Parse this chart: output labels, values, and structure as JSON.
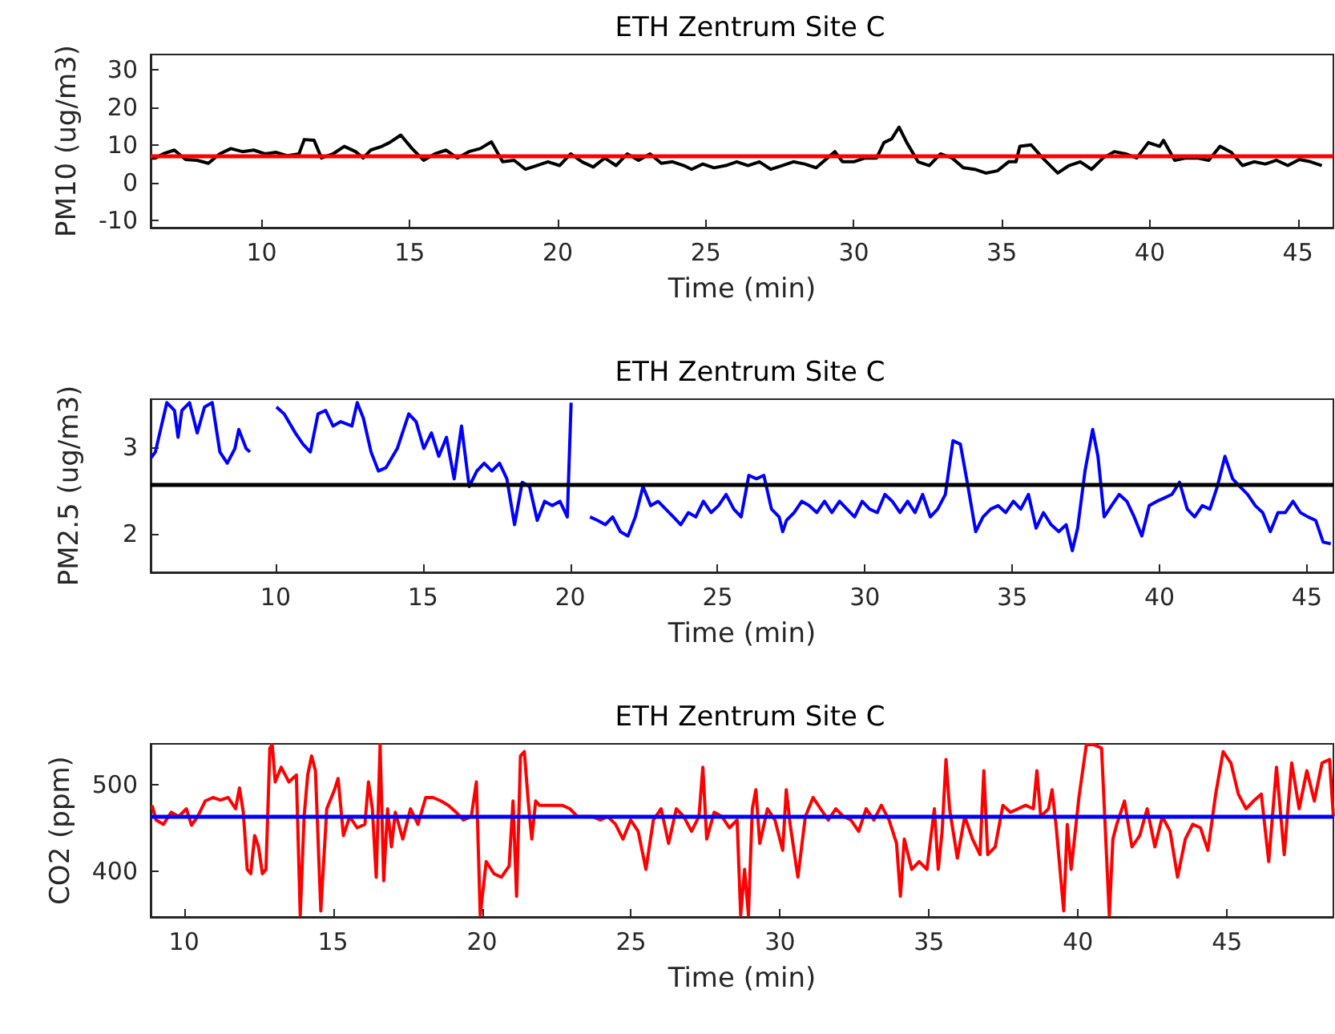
{
  "chart_data": [
    {
      "type": "line",
      "title": "ETH Zentrum Site C",
      "xlabel": "Time (min)",
      "ylabel": "PM10 (ug/m3)",
      "x": [
        6.29,
        6.41,
        6.67,
        7.05,
        7.43,
        7.82,
        8.2,
        8.58,
        8.96,
        9.35,
        9.73,
        10.11,
        10.49,
        10.88,
        11.26,
        11.44,
        11.77,
        12.02,
        12.41,
        12.79,
        13.17,
        13.43,
        13.68,
        14.06,
        14.32,
        14.7,
        15.08,
        15.47,
        15.85,
        16.23,
        16.61,
        17.0,
        17.38,
        17.76,
        18.14,
        18.53,
        18.91,
        19.29,
        19.67,
        20.06,
        20.44,
        20.82,
        21.2,
        21.59,
        21.97,
        22.35,
        22.73,
        23.12,
        23.5,
        23.88,
        24.26,
        24.52,
        24.9,
        25.28,
        25.67,
        26.05,
        26.43,
        26.81,
        27.2,
        27.58,
        27.96,
        28.34,
        28.73,
        29.11,
        29.36,
        29.62,
        30.0,
        30.38,
        30.77,
        31.02,
        31.28,
        31.53,
        31.79,
        32.17,
        32.55,
        32.93,
        33.32,
        33.7,
        34.08,
        34.46,
        34.85,
        35.23,
        35.48,
        35.61,
        35.99,
        36.38,
        36.89,
        37.27,
        37.65,
        38.03,
        38.42,
        38.8,
        39.18,
        39.56,
        39.95,
        40.33,
        40.46,
        40.84,
        41.22,
        41.6,
        41.99,
        42.37,
        42.75,
        43.13,
        43.52,
        43.9,
        44.28,
        44.66,
        45.05,
        45.43,
        45.81
      ],
      "series": [
        {
          "color": "#000000",
          "values": [
            6.5,
            6.5,
            7.6,
            8.6,
            6.1,
            5.9,
            5.1,
            7.6,
            9.0,
            8.2,
            8.6,
            7.6,
            8.0,
            7.1,
            7.6,
            11.4,
            11.2,
            6.5,
            7.6,
            9.6,
            8.2,
            6.5,
            8.6,
            9.6,
            10.6,
            12.6,
            9.0,
            5.9,
            7.6,
            8.6,
            6.5,
            8.2,
            9.0,
            10.8,
            5.5,
            5.9,
            3.5,
            4.5,
            5.5,
            4.5,
            7.6,
            5.5,
            4.1,
            6.5,
            4.5,
            7.6,
            5.9,
            7.6,
            5.1,
            5.5,
            4.5,
            3.5,
            4.9,
            3.9,
            4.5,
            5.5,
            4.5,
            5.5,
            3.5,
            4.5,
            5.5,
            4.9,
            3.9,
            6.5,
            8.2,
            5.5,
            5.5,
            6.5,
            6.5,
            10.6,
            11.6,
            14.7,
            10.6,
            5.5,
            4.5,
            7.6,
            6.5,
            3.9,
            3.5,
            2.5,
            3.1,
            5.5,
            5.5,
            9.6,
            10.0,
            6.5,
            2.5,
            4.5,
            5.5,
            3.5,
            6.5,
            8.2,
            7.6,
            6.5,
            10.6,
            9.6,
            11.2,
            5.9,
            6.5,
            6.5,
            5.9,
            9.6,
            8.0,
            4.5,
            5.5,
            4.9,
            5.9,
            4.5,
            6.1,
            5.5,
            4.5
          ]
        }
      ],
      "xlim": [
        6.25,
        46.2
      ],
      "xticks": [
        10,
        15,
        20,
        25,
        30,
        35,
        40,
        45
      ],
      "ylim": [
        -12,
        34
      ],
      "yticks": [
        -10,
        0,
        10,
        20,
        30
      ],
      "ref_lines": [
        {
          "axis": "y",
          "value": 7,
          "color": "#ff0000"
        }
      ]
    },
    {
      "type": "line",
      "title": "ETH Zentrum Site C",
      "xlabel": "Time (min)",
      "ylabel": "PM2.5 (ug/m3)",
      "x": [
        5.77,
        5.92,
        6.31,
        6.57,
        6.69,
        6.82,
        7.08,
        7.34,
        7.59,
        7.85,
        8.11,
        8.36,
        8.62,
        8.75,
        9.0,
        9.13,
        9.26,
        9.52,
        10.03,
        10.29,
        10.67,
        10.93,
        11.18,
        11.44,
        11.7,
        11.95,
        12.21,
        12.59,
        12.77,
        12.98,
        13.24,
        13.49,
        13.75,
        14.13,
        14.52,
        14.77,
        15.03,
        15.29,
        15.54,
        15.8,
        16.06,
        16.31,
        16.57,
        16.83,
        17.08,
        17.34,
        17.6,
        17.85,
        18.11,
        18.37,
        18.62,
        18.88,
        19.13,
        19.39,
        19.65,
        19.9,
        20.03,
        20.16,
        20.42,
        20.67,
        20.93,
        21.19,
        21.44,
        21.7,
        21.96,
        22.21,
        22.47,
        22.73,
        22.98,
        23.24,
        23.5,
        23.75,
        24.01,
        24.26,
        24.52,
        24.78,
        25.03,
        25.29,
        25.55,
        25.8,
        26.06,
        26.32,
        26.57,
        26.83,
        27.09,
        27.21,
        27.34,
        27.6,
        27.86,
        28.11,
        28.37,
        28.63,
        28.88,
        29.14,
        29.39,
        29.65,
        29.91,
        30.16,
        30.42,
        30.68,
        30.93,
        31.19,
        31.45,
        31.7,
        31.96,
        32.22,
        32.47,
        32.73,
        32.99,
        33.24,
        33.5,
        33.76,
        34.01,
        34.27,
        34.52,
        34.78,
        35.04,
        35.29,
        35.55,
        35.81,
        36.06,
        36.32,
        36.58,
        36.83,
        37.04,
        37.22,
        37.47,
        37.73,
        37.91,
        38.12,
        38.37,
        38.63,
        38.89,
        39.14,
        39.4,
        39.65,
        39.91,
        40.17,
        40.42,
        40.68,
        40.94,
        41.19,
        41.45,
        41.71,
        41.96,
        42.22,
        42.48,
        42.73,
        42.99,
        43.25,
        43.5,
        43.76,
        44.02,
        44.27,
        44.53,
        44.78,
        45.04,
        45.3,
        45.55,
        45.81
      ],
      "series": [
        {
          "color": "#0000ff",
          "values": [
            2.88,
            2.95,
            3.52,
            3.43,
            3.12,
            3.43,
            3.52,
            3.17,
            3.47,
            3.52,
            2.95,
            2.82,
            2.99,
            3.21,
            2.99,
            2.95,
            null,
            null,
            3.47,
            3.39,
            3.17,
            3.04,
            2.95,
            3.39,
            3.43,
            3.25,
            3.3,
            3.25,
            3.52,
            3.34,
            2.95,
            2.73,
            2.77,
            2.99,
            3.39,
            3.3,
            2.99,
            3.17,
            2.9,
            3.12,
            2.64,
            3.25,
            2.55,
            2.73,
            2.82,
            2.73,
            2.82,
            2.64,
            2.11,
            2.6,
            2.55,
            2.16,
            2.38,
            2.33,
            2.38,
            2.2,
            3.52,
            null,
            null,
            2.2,
            2.16,
            2.11,
            2.2,
            2.03,
            1.98,
            2.2,
            2.55,
            2.33,
            2.38,
            2.29,
            2.2,
            2.11,
            2.25,
            2.2,
            2.38,
            2.25,
            2.33,
            2.46,
            2.29,
            2.2,
            2.68,
            2.64,
            2.68,
            2.29,
            2.2,
            2.03,
            2.16,
            2.25,
            2.38,
            2.33,
            2.25,
            2.38,
            2.25,
            2.38,
            2.29,
            2.2,
            2.38,
            2.29,
            2.25,
            2.46,
            2.38,
            2.25,
            2.38,
            2.25,
            2.46,
            2.2,
            2.29,
            2.46,
            3.08,
            3.04,
            2.55,
            2.03,
            2.2,
            2.29,
            2.33,
            2.25,
            2.38,
            2.29,
            2.46,
            2.07,
            2.25,
            2.11,
            2.03,
            2.11,
            1.81,
            2.07,
            2.73,
            3.21,
            2.9,
            2.2,
            2.33,
            2.46,
            2.38,
            2.2,
            1.98,
            2.33,
            2.38,
            2.42,
            2.46,
            2.6,
            2.29,
            2.2,
            2.33,
            2.29,
            2.55,
            2.9,
            2.64,
            2.55,
            2.46,
            2.33,
            2.25,
            2.03,
            2.25,
            2.25,
            2.38,
            2.25,
            2.2,
            2.16,
            1.91,
            1.89
          ]
        }
      ],
      "xlim": [
        5.76,
        45.9
      ],
      "xticks": [
        10,
        15,
        20,
        25,
        30,
        35,
        40,
        45
      ],
      "ylim": [
        1.56,
        3.56
      ],
      "yticks": [
        2,
        3
      ],
      "ref_lines": [
        {
          "axis": "y",
          "value": 2.58,
          "color": "#000000"
        }
      ]
    },
    {
      "type": "line",
      "title": "ETH Zentrum Site C",
      "xlabel": "Time (min)",
      "ylabel": "CO2 (ppm)",
      "x": [
        8.93,
        9.06,
        9.31,
        9.57,
        9.82,
        10.08,
        10.25,
        10.46,
        10.71,
        10.97,
        11.22,
        11.48,
        11.73,
        11.86,
        11.99,
        12.12,
        12.24,
        12.37,
        12.5,
        12.63,
        12.75,
        12.88,
        12.96,
        13.06,
        13.26,
        13.52,
        13.77,
        13.9,
        14.03,
        14.15,
        14.28,
        14.41,
        14.59,
        14.79,
        15.05,
        15.17,
        15.35,
        15.56,
        15.81,
        16.07,
        16.19,
        16.32,
        16.45,
        16.58,
        16.7,
        16.83,
        16.96,
        17.09,
        17.34,
        17.6,
        17.85,
        18.11,
        18.36,
        18.62,
        18.87,
        19.13,
        19.38,
        19.64,
        19.81,
        19.94,
        20.14,
        20.4,
        20.65,
        20.91,
        21.04,
        21.16,
        21.29,
        21.42,
        21.55,
        21.67,
        21.8,
        21.93,
        22.18,
        22.44,
        22.69,
        22.95,
        23.2,
        23.71,
        23.97,
        24.22,
        24.48,
        24.73,
        24.99,
        25.24,
        25.5,
        25.75,
        26.01,
        26.26,
        26.52,
        26.77,
        27.03,
        27.28,
        27.41,
        27.54,
        27.79,
        28.05,
        28.3,
        28.56,
        28.68,
        28.81,
        28.94,
        29.07,
        29.19,
        29.32,
        29.58,
        29.83,
        30.09,
        30.21,
        30.34,
        30.6,
        30.85,
        31.11,
        31.36,
        31.62,
        31.87,
        32.13,
        32.38,
        32.64,
        32.89,
        33.15,
        33.4,
        33.66,
        33.91,
        34.04,
        34.17,
        34.42,
        34.67,
        34.93,
        35.18,
        35.31,
        35.44,
        35.57,
        35.69,
        35.95,
        36.2,
        36.46,
        36.71,
        36.84,
        36.97,
        37.22,
        37.48,
        37.73,
        37.99,
        38.24,
        38.5,
        38.62,
        38.75,
        39.01,
        39.13,
        39.26,
        39.52,
        39.64,
        39.77,
        40.03,
        40.28,
        40.54,
        40.79,
        41.05,
        41.17,
        41.3,
        41.56,
        41.81,
        42.07,
        42.32,
        42.58,
        42.83,
        43.09,
        43.34,
        43.6,
        43.85,
        44.11,
        44.36,
        44.62,
        44.87,
        45.13,
        45.38,
        45.64,
        45.89,
        46.15,
        46.4,
        46.66,
        46.92,
        47.17,
        47.42,
        47.68,
        47.93,
        48.19,
        48.44,
        48.57
      ],
      "series": [
        {
          "color": "#ff0000",
          "values": [
            476,
            459,
            454,
            468,
            463,
            472,
            453,
            463,
            481,
            485,
            482,
            485,
            472,
            496,
            468,
            402,
            397,
            441,
            428,
            397,
            402,
            542,
            546,
            503,
            520,
            503,
            511,
            349,
            463,
            511,
            533,
            516,
            354,
            472,
            494,
            507,
            441,
            463,
            450,
            454,
            503,
            472,
            393,
            546,
            389,
            472,
            428,
            468,
            437,
            472,
            454,
            485,
            485,
            481,
            476,
            468,
            459,
            463,
            503,
            349,
            411,
            397,
            393,
            406,
            481,
            371,
            533,
            538,
            481,
            437,
            481,
            476,
            476,
            476,
            476,
            472,
            463,
            463,
            459,
            463,
            454,
            437,
            459,
            446,
            402,
            459,
            472,
            432,
            472,
            463,
            446,
            463,
            520,
            437,
            468,
            463,
            450,
            459,
            349,
            402,
            349,
            472,
            494,
            432,
            472,
            459,
            424,
            494,
            454,
            393,
            463,
            485,
            472,
            459,
            472,
            463,
            459,
            446,
            472,
            459,
            476,
            459,
            432,
            371,
            437,
            402,
            411,
            402,
            472,
            402,
            446,
            529,
            472,
            415,
            463,
            437,
            419,
            516,
            419,
            428,
            476,
            468,
            472,
            476,
            472,
            516,
            463,
            472,
            494,
            454,
            354,
            454,
            402,
            485,
            546,
            546,
            542,
            349,
            437,
            454,
            481,
            428,
            441,
            472,
            428,
            463,
            446,
            393,
            437,
            454,
            450,
            424,
            489,
            538,
            525,
            489,
            472,
            481,
            489,
            411,
            520,
            419,
            525,
            472,
            516,
            481,
            525,
            529,
            463
          ]
        }
      ],
      "xlim": [
        8.88,
        48.57
      ],
      "xticks": [
        10,
        15,
        20,
        25,
        30,
        35,
        40,
        45
      ],
      "ylim": [
        347,
        547
      ],
      "yticks": [
        400,
        500
      ],
      "ref_lines": [
        {
          "axis": "y",
          "value": 463,
          "color": "#0000ff"
        }
      ]
    }
  ]
}
